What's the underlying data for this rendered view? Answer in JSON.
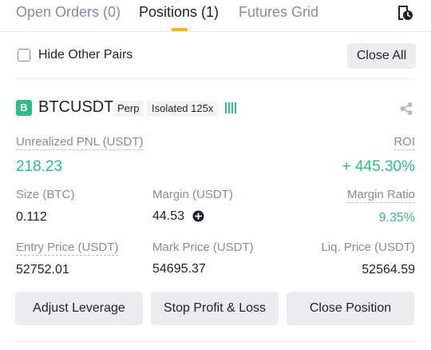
{
  "tabs": [
    {
      "label": "Open Orders (0)"
    },
    {
      "label": "Positions (1)"
    },
    {
      "label": "Futures Grid"
    }
  ],
  "filter": {
    "hide_other_pairs_label": "Hide Other Pairs",
    "hide_other_pairs_checked": false,
    "close_all_label": "Close All"
  },
  "position": {
    "side_badge": "B",
    "symbol": "BTCUSDT",
    "contract_tag": "Perp",
    "margin_tag": "Isolated 125x",
    "unrealized_pnl_label": "Unrealized PNL (USDT)",
    "unrealized_pnl_value": "218.23",
    "roi_label": "ROI",
    "roi_value": "+ 445.30%",
    "size_label": "Size (BTC)",
    "size_value": "0.112",
    "margin_label": "Margin (USDT)",
    "margin_value": "44.53",
    "margin_ratio_label": "Margin Ratio",
    "margin_ratio_value": "9.35%",
    "entry_price_label": "Entry Price (USDT)",
    "entry_price_value": "52752.01",
    "mark_price_label": "Mark Price (USDT)",
    "mark_price_value": "54695.37",
    "liq_price_label": "Liq. Price (USDT)",
    "liq_price_value": "52564.59"
  },
  "actions": {
    "adjust_leverage": "Adjust Leverage",
    "stop_profit_loss": "Stop Profit & Loss",
    "close_position": "Close Position"
  },
  "colors": {
    "accent": "#f0b90b",
    "positive": "#2ebd85",
    "muted_text": "#848e9c",
    "button_bg": "#eaecef"
  },
  "icons": {
    "history": "history-icon",
    "risk": "risk-level-icon",
    "share": "share-icon",
    "add_margin": "plus-circle-icon"
  }
}
